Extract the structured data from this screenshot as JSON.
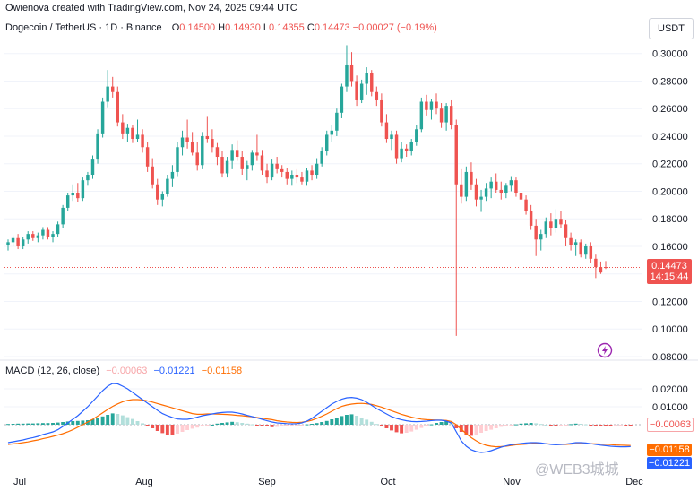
{
  "header": {
    "created_by": "Owienova created with TradingView.com, Nov 24, 2025 09:44 UTC"
  },
  "symbol": {
    "name": "Dogecoin / TetherUS · 1D · Binance",
    "open_label": "O",
    "open": "0.14500",
    "high_label": "H",
    "high": "0.14930",
    "low_label": "L",
    "low": "0.14355",
    "close_label": "C",
    "close": "0.14473",
    "change": "−0.00027 (−0.19%)"
  },
  "currency": "USDT",
  "price_tag": {
    "price": "0.14473",
    "countdown": "14:15:44"
  },
  "macd_legend": {
    "label": "MACD (12, 26, close)",
    "histogram": "−0.00063",
    "macd": "−0.01221",
    "signal": "−0.01158"
  },
  "macd_tags": {
    "histogram": "−0.00063",
    "signal": "−0.01158",
    "macd": "−0.01221"
  },
  "watermark": "@WEB3城城",
  "colors": {
    "up": "#26a69a",
    "down": "#ef5350",
    "macd": "#2962ff",
    "signal": "#ff6d00"
  },
  "chart_data": [
    {
      "type": "candlestick",
      "x_labels": [
        "Jul",
        "Aug",
        "Sep",
        "Oct",
        "Nov",
        "Dec"
      ],
      "y_ticks": [
        "0.30000",
        "0.28000",
        "0.26000",
        "0.24000",
        "0.22000",
        "0.20000",
        "0.18000",
        "0.16000",
        "0.14000",
        "0.12000",
        "0.10000",
        "0.08000"
      ],
      "ylim": [
        0.08,
        0.305
      ],
      "last_close": 0.14473,
      "candles": [
        [
          0.161,
          0.165,
          0.157,
          0.163
        ],
        [
          0.163,
          0.168,
          0.16,
          0.166
        ],
        [
          0.166,
          0.169,
          0.158,
          0.16
        ],
        [
          0.16,
          0.167,
          0.158,
          0.165
        ],
        [
          0.165,
          0.171,
          0.162,
          0.169
        ],
        [
          0.169,
          0.171,
          0.164,
          0.166
        ],
        [
          0.166,
          0.17,
          0.163,
          0.168
        ],
        [
          0.168,
          0.174,
          0.165,
          0.172
        ],
        [
          0.172,
          0.174,
          0.165,
          0.167
        ],
        [
          0.167,
          0.171,
          0.163,
          0.169
        ],
        [
          0.169,
          0.178,
          0.167,
          0.176
        ],
        [
          0.176,
          0.19,
          0.173,
          0.188
        ],
        [
          0.188,
          0.199,
          0.186,
          0.197
        ],
        [
          0.197,
          0.205,
          0.193,
          0.199
        ],
        [
          0.199,
          0.206,
          0.192,
          0.195
        ],
        [
          0.195,
          0.21,
          0.193,
          0.208
        ],
        [
          0.208,
          0.214,
          0.204,
          0.212
        ],
        [
          0.212,
          0.226,
          0.209,
          0.223
        ],
        [
          0.223,
          0.245,
          0.22,
          0.242
        ],
        [
          0.242,
          0.268,
          0.239,
          0.265
        ],
        [
          0.265,
          0.288,
          0.261,
          0.276
        ],
        [
          0.276,
          0.283,
          0.268,
          0.272
        ],
        [
          0.272,
          0.276,
          0.247,
          0.25
        ],
        [
          0.25,
          0.256,
          0.238,
          0.242
        ],
        [
          0.242,
          0.249,
          0.236,
          0.246
        ],
        [
          0.246,
          0.248,
          0.235,
          0.238
        ],
        [
          0.238,
          0.252,
          0.236,
          0.241
        ],
        [
          0.241,
          0.245,
          0.228,
          0.232
        ],
        [
          0.232,
          0.236,
          0.214,
          0.218
        ],
        [
          0.218,
          0.224,
          0.202,
          0.205
        ],
        [
          0.205,
          0.209,
          0.19,
          0.194
        ],
        [
          0.194,
          0.2,
          0.189,
          0.198
        ],
        [
          0.198,
          0.212,
          0.196,
          0.209
        ],
        [
          0.209,
          0.219,
          0.203,
          0.214
        ],
        [
          0.214,
          0.236,
          0.211,
          0.232
        ],
        [
          0.232,
          0.244,
          0.226,
          0.239
        ],
        [
          0.239,
          0.252,
          0.231,
          0.236
        ],
        [
          0.236,
          0.243,
          0.226,
          0.228
        ],
        [
          0.228,
          0.236,
          0.215,
          0.219
        ],
        [
          0.219,
          0.243,
          0.216,
          0.24
        ],
        [
          0.24,
          0.254,
          0.235,
          0.238
        ],
        [
          0.238,
          0.245,
          0.228,
          0.232
        ],
        [
          0.232,
          0.235,
          0.219,
          0.225
        ],
        [
          0.225,
          0.229,
          0.21,
          0.213
        ],
        [
          0.213,
          0.225,
          0.21,
          0.222
        ],
        [
          0.222,
          0.234,
          0.216,
          0.23
        ],
        [
          0.23,
          0.237,
          0.222,
          0.225
        ],
        [
          0.225,
          0.229,
          0.212,
          0.216
        ],
        [
          0.216,
          0.222,
          0.208,
          0.219
        ],
        [
          0.219,
          0.23,
          0.215,
          0.228
        ],
        [
          0.228,
          0.241,
          0.222,
          0.226
        ],
        [
          0.226,
          0.23,
          0.212,
          0.215
        ],
        [
          0.215,
          0.22,
          0.206,
          0.21
        ],
        [
          0.21,
          0.223,
          0.208,
          0.22
        ],
        [
          0.22,
          0.225,
          0.213,
          0.216
        ],
        [
          0.216,
          0.219,
          0.21,
          0.214
        ],
        [
          0.214,
          0.217,
          0.205,
          0.209
        ],
        [
          0.209,
          0.215,
          0.204,
          0.212
        ],
        [
          0.212,
          0.216,
          0.206,
          0.21
        ],
        [
          0.21,
          0.214,
          0.205,
          0.207
        ],
        [
          0.207,
          0.217,
          0.204,
          0.215
        ],
        [
          0.215,
          0.219,
          0.208,
          0.212
        ],
        [
          0.212,
          0.224,
          0.209,
          0.22
        ],
        [
          0.22,
          0.232,
          0.218,
          0.229
        ],
        [
          0.229,
          0.244,
          0.226,
          0.241
        ],
        [
          0.241,
          0.248,
          0.236,
          0.244
        ],
        [
          0.244,
          0.26,
          0.24,
          0.257
        ],
        [
          0.257,
          0.278,
          0.253,
          0.276
        ],
        [
          0.276,
          0.306,
          0.272,
          0.292
        ],
        [
          0.292,
          0.301,
          0.276,
          0.28
        ],
        [
          0.28,
          0.284,
          0.262,
          0.266
        ],
        [
          0.266,
          0.281,
          0.264,
          0.278
        ],
        [
          0.278,
          0.29,
          0.27,
          0.286
        ],
        [
          0.286,
          0.288,
          0.269,
          0.272
        ],
        [
          0.272,
          0.276,
          0.262,
          0.266
        ],
        [
          0.266,
          0.271,
          0.247,
          0.25
        ],
        [
          0.25,
          0.256,
          0.235,
          0.238
        ],
        [
          0.238,
          0.244,
          0.23,
          0.241
        ],
        [
          0.241,
          0.244,
          0.22,
          0.224
        ],
        [
          0.224,
          0.236,
          0.221,
          0.231
        ],
        [
          0.231,
          0.234,
          0.225,
          0.229
        ],
        [
          0.229,
          0.238,
          0.226,
          0.236
        ],
        [
          0.236,
          0.248,
          0.233,
          0.245
        ],
        [
          0.245,
          0.268,
          0.243,
          0.265
        ],
        [
          0.265,
          0.27,
          0.255,
          0.259
        ],
        [
          0.259,
          0.267,
          0.252,
          0.265
        ],
        [
          0.265,
          0.271,
          0.256,
          0.26
        ],
        [
          0.26,
          0.264,
          0.246,
          0.25
        ],
        [
          0.25,
          0.264,
          0.244,
          0.262
        ],
        [
          0.262,
          0.266,
          0.245,
          0.248
        ],
        [
          0.248,
          0.252,
          0.095,
          0.205
        ],
        [
          0.205,
          0.216,
          0.191,
          0.196
        ],
        [
          0.196,
          0.218,
          0.193,
          0.214
        ],
        [
          0.214,
          0.221,
          0.201,
          0.205
        ],
        [
          0.205,
          0.209,
          0.189,
          0.194
        ],
        [
          0.194,
          0.201,
          0.185,
          0.196
        ],
        [
          0.196,
          0.206,
          0.193,
          0.202
        ],
        [
          0.202,
          0.21,
          0.195,
          0.207
        ],
        [
          0.207,
          0.213,
          0.199,
          0.201
        ],
        [
          0.201,
          0.207,
          0.194,
          0.199
        ],
        [
          0.199,
          0.206,
          0.195,
          0.204
        ],
        [
          0.204,
          0.211,
          0.2,
          0.208
        ],
        [
          0.208,
          0.21,
          0.196,
          0.199
        ],
        [
          0.199,
          0.204,
          0.19,
          0.194
        ],
        [
          0.194,
          0.197,
          0.183,
          0.186
        ],
        [
          0.186,
          0.19,
          0.172,
          0.175
        ],
        [
          0.175,
          0.18,
          0.153,
          0.165
        ],
        [
          0.165,
          0.172,
          0.157,
          0.169
        ],
        [
          0.169,
          0.181,
          0.166,
          0.178
        ],
        [
          0.178,
          0.184,
          0.168,
          0.173
        ],
        [
          0.173,
          0.187,
          0.17,
          0.18
        ],
        [
          0.18,
          0.186,
          0.173,
          0.176
        ],
        [
          0.176,
          0.179,
          0.16,
          0.166
        ],
        [
          0.166,
          0.17,
          0.157,
          0.161
        ],
        [
          0.161,
          0.165,
          0.153,
          0.163
        ],
        [
          0.163,
          0.165,
          0.152,
          0.154
        ],
        [
          0.154,
          0.162,
          0.151,
          0.16
        ],
        [
          0.16,
          0.163,
          0.148,
          0.151
        ],
        [
          0.151,
          0.154,
          0.137,
          0.145
        ],
        [
          0.145,
          0.149,
          0.14,
          0.141
        ],
        [
          0.145,
          0.1493,
          0.14355,
          0.14473
        ]
      ]
    },
    {
      "type": "macd",
      "y_ticks": [
        "0.02000",
        "0.01000"
      ],
      "ylim": [
        -0.027,
        0.027
      ],
      "histogram": [
        0.0004,
        0.0005,
        0.0006,
        0.0006,
        0.0007,
        0.0007,
        0.0008,
        0.0009,
        0.0009,
        0.001,
        0.0012,
        0.0015,
        0.0018,
        0.002,
        0.0021,
        0.0023,
        0.0025,
        0.003,
        0.0037,
        0.0046,
        0.0055,
        0.0063,
        0.006,
        0.0052,
        0.0042,
        0.0032,
        0.002,
        0.0008,
        -0.0005,
        -0.002,
        -0.0035,
        -0.0047,
        -0.0055,
        -0.006,
        -0.005,
        -0.004,
        -0.003,
        -0.0022,
        -0.0016,
        -0.001,
        -0.0005,
        0.0,
        0.0006,
        0.001,
        0.0013,
        0.0016,
        0.0014,
        0.001,
        0.0006,
        0.0002,
        -0.0002,
        -0.0006,
        -0.001,
        -0.0014,
        -0.0012,
        -0.001,
        -0.0009,
        -0.0008,
        -0.0006,
        -0.0004,
        0.0002,
        0.0005,
        0.0009,
        0.0015,
        0.0021,
        0.003,
        0.004,
        0.0048,
        0.0055,
        0.0058,
        0.005,
        0.004,
        0.0028,
        0.0016,
        0.0004,
        -0.0008,
        -0.002,
        -0.0032,
        -0.0042,
        -0.0048,
        -0.0045,
        -0.0038,
        -0.0028,
        -0.0018,
        -0.0008,
        0.0002,
        0.001,
        0.0015,
        0.0018,
        0.0016,
        -0.002,
        -0.004,
        -0.0055,
        -0.0062,
        -0.0055,
        -0.0045,
        -0.0035,
        -0.0028,
        -0.002,
        -0.0012,
        -0.0006,
        -0.0002,
        0.0002,
        0.0006,
        0.0008,
        0.001,
        0.0008,
        0.0004,
        0.0,
        -0.0004,
        -0.0006,
        -0.0004,
        -0.0002,
        0.0003,
        0.0006,
        0.0005,
        0.0002,
        -0.0002,
        -0.0005,
        -0.0007,
        -0.0008,
        -0.0008,
        -0.0007,
        -0.0006,
        -0.0006,
        -0.00063
      ],
      "macd": [
        -0.01,
        -0.0095,
        -0.009,
        -0.0085,
        -0.0078,
        -0.0072,
        -0.0065,
        -0.0055,
        -0.0048,
        -0.004,
        -0.0028,
        -0.001,
        0.001,
        0.003,
        0.005,
        0.0075,
        0.01,
        0.013,
        0.016,
        0.019,
        0.0215,
        0.023,
        0.0228,
        0.0215,
        0.02,
        0.018,
        0.016,
        0.014,
        0.012,
        0.01,
        0.008,
        0.0062,
        0.005,
        0.004,
        0.0032,
        0.003,
        0.003,
        0.0035,
        0.0042,
        0.005,
        0.0055,
        0.006,
        0.0065,
        0.0068,
        0.007,
        0.007,
        0.0066,
        0.006,
        0.0052,
        0.0045,
        0.0038,
        0.003,
        0.0022,
        0.0015,
        0.001,
        0.0008,
        0.0006,
        0.0005,
        0.0006,
        0.001,
        0.002,
        0.0035,
        0.0055,
        0.0075,
        0.0095,
        0.0115,
        0.013,
        0.0142,
        0.015,
        0.0152,
        0.0148,
        0.014,
        0.0125,
        0.0108,
        0.009,
        0.0075,
        0.006,
        0.0045,
        0.0035,
        0.0028,
        0.0022,
        0.0018,
        0.0017,
        0.0018,
        0.002,
        0.0023,
        0.0025,
        0.0025,
        0.002,
        0.001,
        -0.004,
        -0.009,
        -0.012,
        -0.014,
        -0.015,
        -0.0155,
        -0.0152,
        -0.0145,
        -0.0135,
        -0.0125,
        -0.0118,
        -0.0112,
        -0.0108,
        -0.0105,
        -0.0102,
        -0.01,
        -0.01,
        -0.0102,
        -0.0106,
        -0.011,
        -0.0112,
        -0.011,
        -0.0108,
        -0.0104,
        -0.01,
        -0.01,
        -0.0102,
        -0.0106,
        -0.011,
        -0.0114,
        -0.0117,
        -0.012,
        -0.0122,
        -0.0123,
        -0.0123,
        -0.01221
      ],
      "signal": [
        -0.011,
        -0.0107,
        -0.0104,
        -0.01,
        -0.0096,
        -0.009,
        -0.0085,
        -0.0078,
        -0.0072,
        -0.0065,
        -0.0058,
        -0.005,
        -0.004,
        -0.0028,
        -0.0014,
        0.0,
        0.0015,
        0.003,
        0.0048,
        0.0066,
        0.0085,
        0.0102,
        0.0116,
        0.0128,
        0.0136,
        0.014,
        0.014,
        0.0138,
        0.0133,
        0.0126,
        0.0118,
        0.011,
        0.0102,
        0.0094,
        0.0086,
        0.0078,
        0.007,
        0.0062,
        0.0058,
        0.0058,
        0.006,
        0.006,
        0.0059,
        0.0058,
        0.0057,
        0.0055,
        0.0052,
        0.005,
        0.0047,
        0.0044,
        0.004,
        0.0036,
        0.0032,
        0.0028,
        0.0022,
        0.0018,
        0.0015,
        0.0013,
        0.0012,
        0.0014,
        0.0018,
        0.0025,
        0.0035,
        0.0047,
        0.006,
        0.0075,
        0.009,
        0.0102,
        0.011,
        0.0115,
        0.0118,
        0.0119,
        0.0117,
        0.0113,
        0.0106,
        0.0098,
        0.0088,
        0.0078,
        0.0068,
        0.0058,
        0.005,
        0.0042,
        0.0036,
        0.0031,
        0.0028,
        0.0027,
        0.0026,
        0.0025,
        0.0024,
        0.0018,
        0.0,
        -0.0025,
        -0.005,
        -0.0072,
        -0.009,
        -0.0105,
        -0.0115,
        -0.012,
        -0.0123,
        -0.0122,
        -0.012,
        -0.0116,
        -0.0112,
        -0.011,
        -0.0108,
        -0.0106,
        -0.0104,
        -0.0104,
        -0.0106,
        -0.0108,
        -0.011,
        -0.011,
        -0.011,
        -0.0108,
        -0.0106,
        -0.0106,
        -0.0106,
        -0.0106,
        -0.0107,
        -0.0108,
        -0.0109,
        -0.0111,
        -0.0113,
        -0.0114,
        -0.0115,
        -0.01158
      ]
    }
  ]
}
